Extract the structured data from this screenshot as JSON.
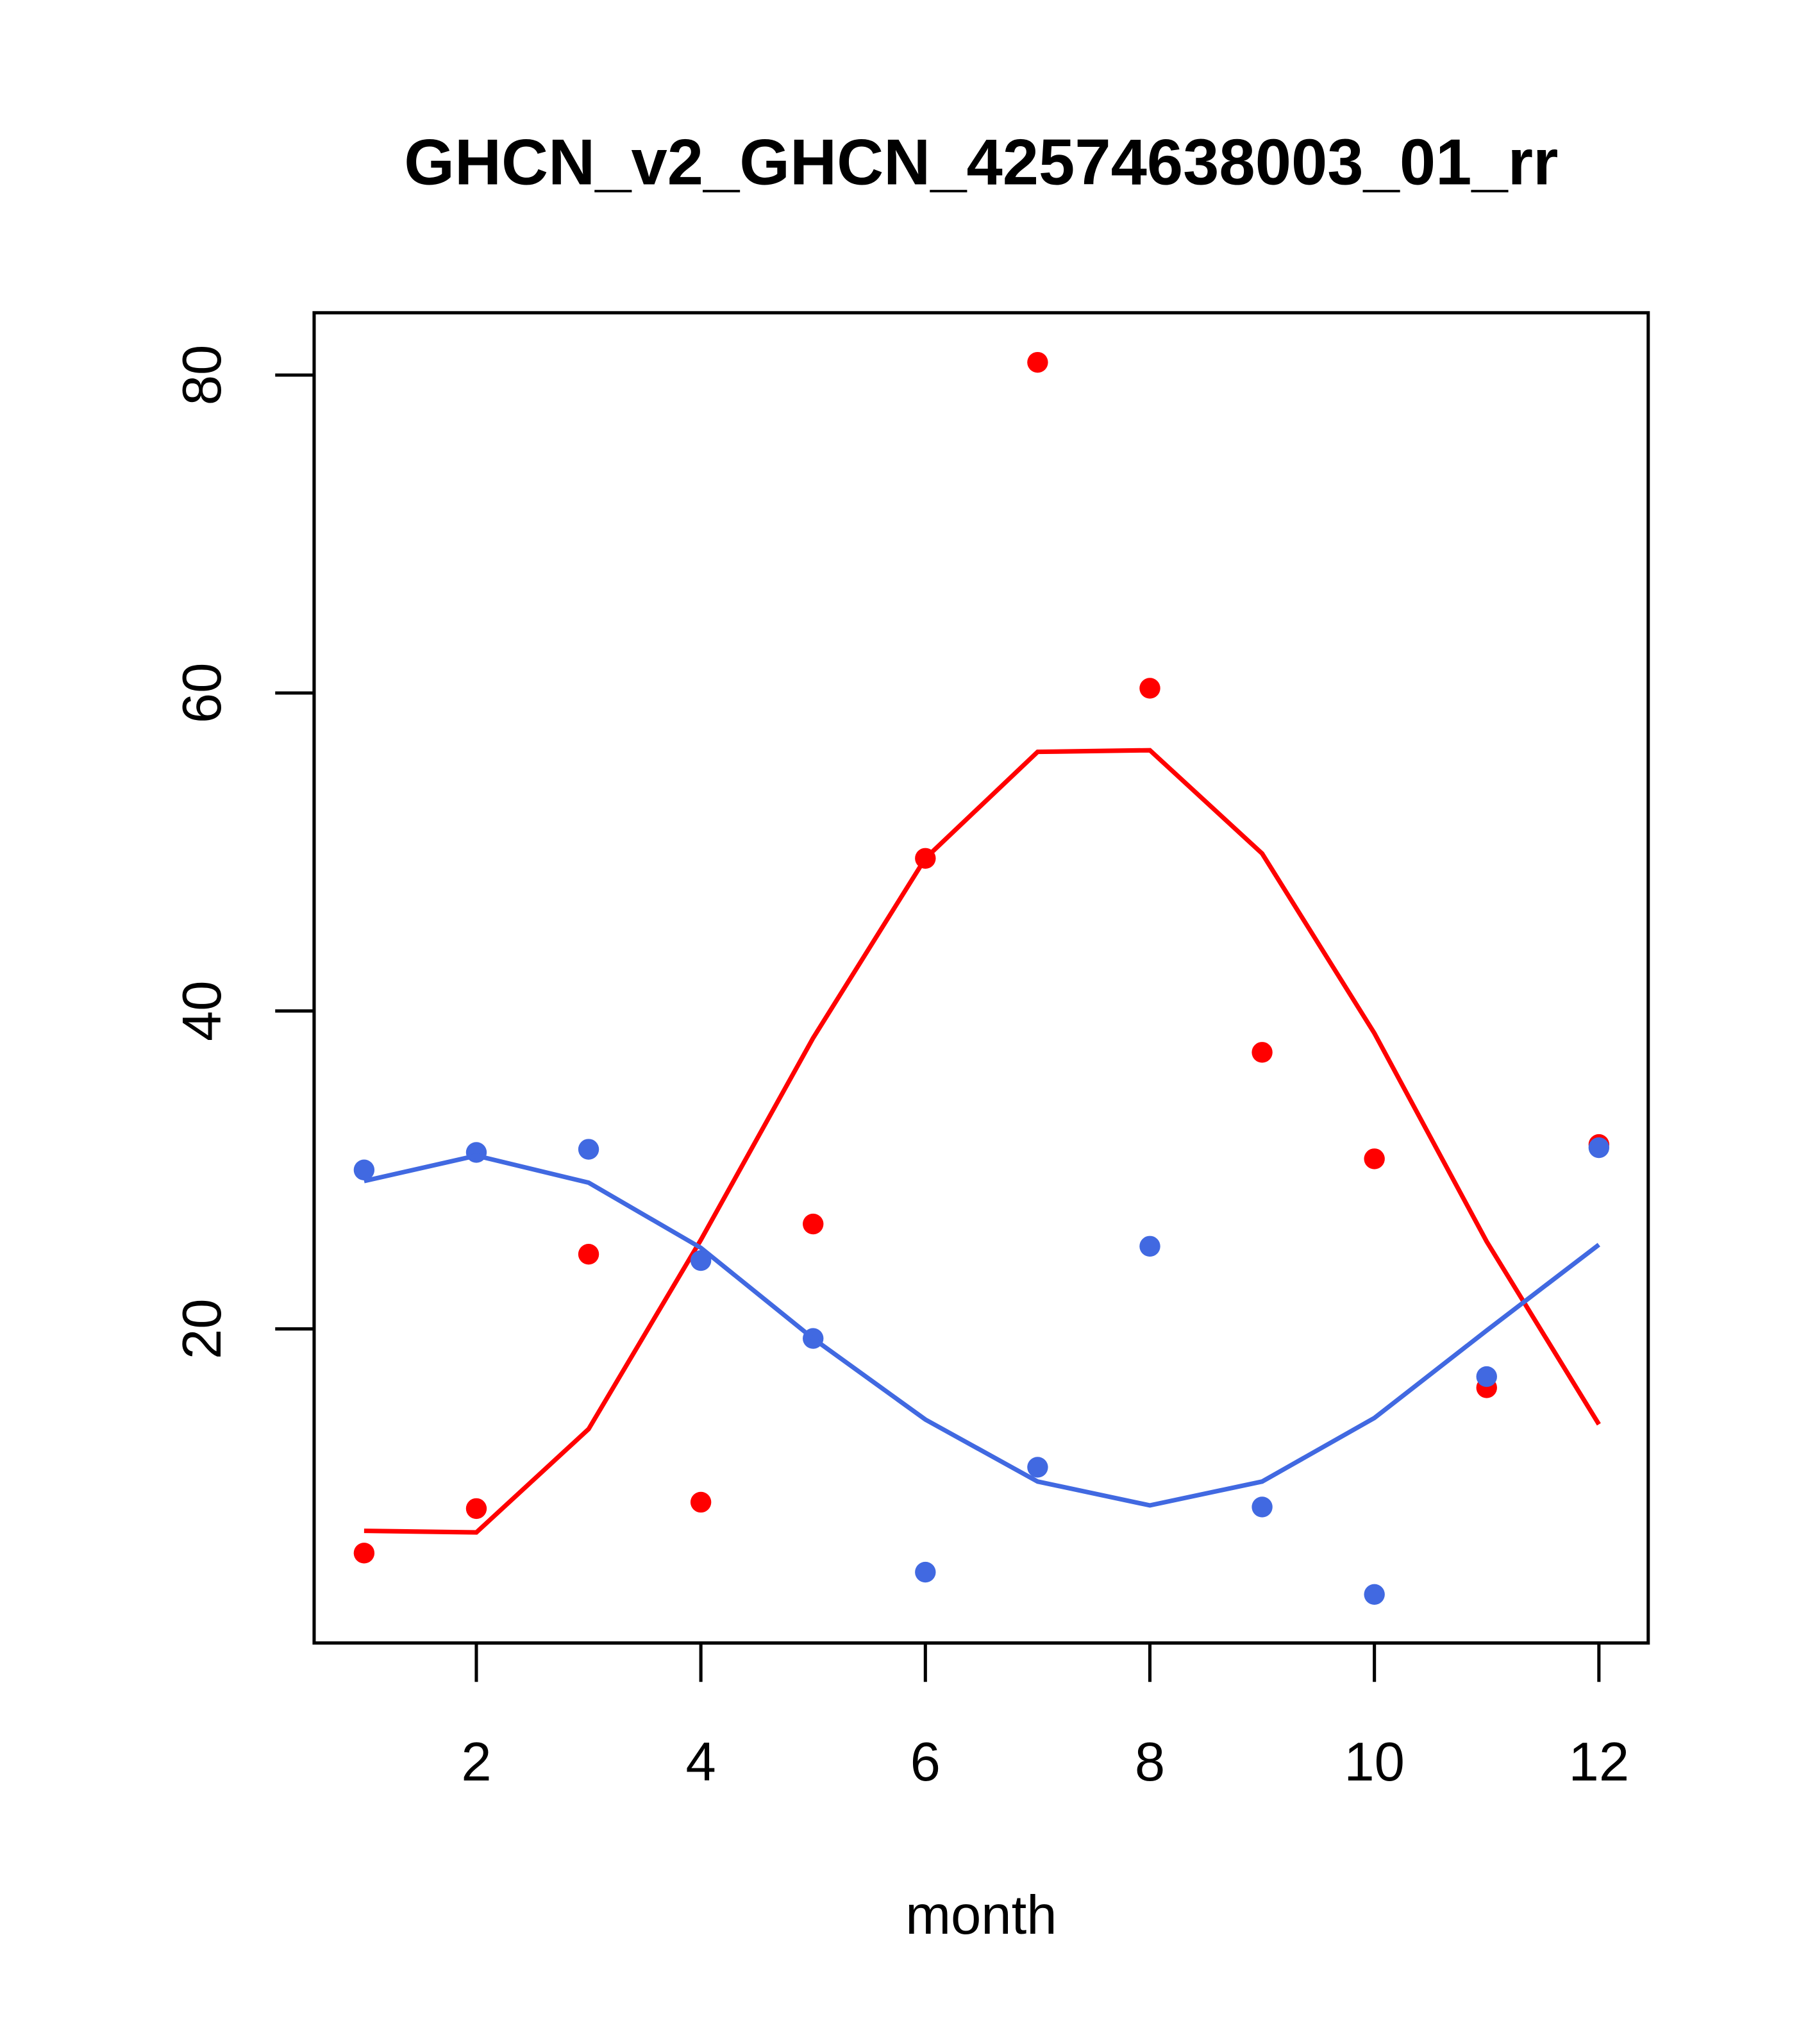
{
  "chart_data": {
    "type": "line",
    "title": "GHCN_v2_GHCN_42574638003_01_rr",
    "xlabel": "month",
    "ylabel": "",
    "xlim": [
      0.55,
      12.45
    ],
    "ylim": [
      0,
      83.5
    ],
    "x_ticks": [
      2,
      4,
      6,
      8,
      10,
      12
    ],
    "y_ticks": [
      20,
      40,
      60,
      80
    ],
    "x": [
      1,
      2,
      3,
      4,
      5,
      6,
      7,
      8,
      9,
      10,
      11,
      12
    ],
    "series": [
      {
        "name": "red points",
        "kind": "points",
        "color": "#ff0000",
        "values": [
          5.9,
          8.7,
          24.7,
          9.1,
          26.6,
          49.6,
          80.8,
          60.3,
          37.4,
          30.7,
          16.3,
          31.6
        ]
      },
      {
        "name": "red line",
        "kind": "line",
        "color": "#ff0000",
        "values": [
          7.3,
          7.2,
          13.7,
          25.6,
          38.3,
          49.6,
          56.3,
          56.4,
          49.9,
          38.6,
          25.5,
          14.0
        ]
      },
      {
        "name": "blue points",
        "kind": "points",
        "color": "#4169e1",
        "values": [
          30.0,
          31.1,
          31.3,
          24.3,
          19.4,
          4.7,
          11.3,
          25.2,
          8.8,
          3.3,
          17.0,
          31.4
        ]
      },
      {
        "name": "blue line",
        "kind": "line",
        "color": "#4169e1",
        "values": [
          29.3,
          30.9,
          29.2,
          25.1,
          19.4,
          14.3,
          10.4,
          8.9,
          10.4,
          14.4,
          19.9,
          25.3
        ]
      }
    ]
  }
}
